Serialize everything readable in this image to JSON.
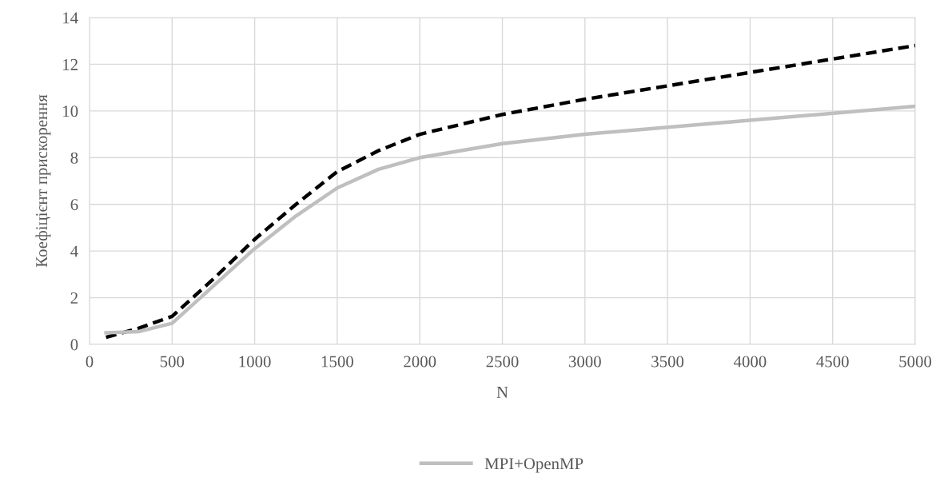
{
  "chart_data": {
    "type": "line",
    "xlabel": "N",
    "ylabel": "Коефіцієнт прискорення",
    "xlim": [
      0,
      5000
    ],
    "xticks": [
      0,
      500,
      1000,
      1500,
      2000,
      2500,
      3000,
      3500,
      4000,
      4500,
      5000
    ],
    "ylim": [
      0,
      14
    ],
    "yticks": [
      0,
      2,
      4,
      6,
      8,
      10,
      12,
      14
    ],
    "grid": true,
    "legend": "bottom",
    "marker": "none",
    "x": [
      100,
      300,
      500,
      750,
      1000,
      1250,
      1500,
      1750,
      2000,
      2500,
      3000,
      4000,
      5000
    ],
    "series": [
      {
        "color": "#000000",
        "line_style": "dashed",
        "values": [
          0.3,
          0.7,
          1.2,
          2.8,
          4.5,
          6.0,
          7.4,
          8.3,
          9.0,
          9.85,
          10.5,
          11.65,
          12.8
        ]
      },
      {
        "name": "MPI+OpenMP",
        "color": "#bfbfbf",
        "line_style": "solid",
        "values": [
          0.5,
          0.55,
          0.9,
          2.5,
          4.1,
          5.5,
          6.7,
          7.5,
          8.0,
          8.6,
          9.0,
          9.6,
          10.2
        ]
      }
    ]
  }
}
